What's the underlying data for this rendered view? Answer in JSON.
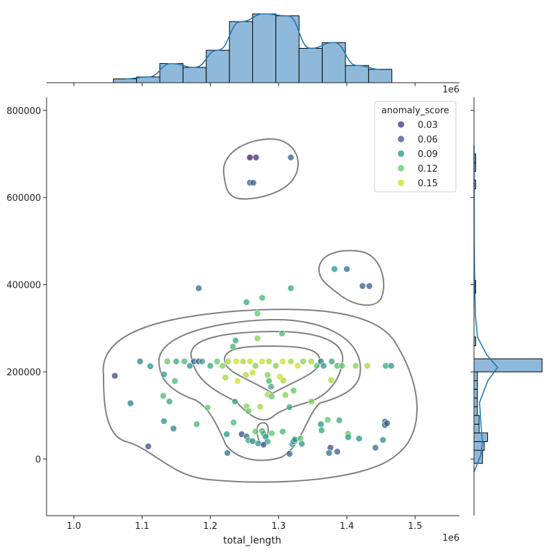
{
  "chart_data": {
    "type": "scatter",
    "xlabel": "total_length",
    "ylabel": "",
    "x_offset_label": "1e6",
    "xlim": [
      0.96,
      1.565
    ],
    "ylim": [
      -130000,
      830000
    ],
    "x_ticks": [
      1.0,
      1.1,
      1.2,
      1.3,
      1.4,
      1.5
    ],
    "x_tick_labels": [
      "1.0",
      "1.1",
      "1.2",
      "1.3",
      "1.4",
      "1.5"
    ],
    "y_ticks": [
      0,
      200000,
      400000,
      600000,
      800000
    ],
    "y_tick_labels": [
      "0",
      "200000",
      "400000",
      "600000",
      "800000"
    ],
    "legend": {
      "title": "anomaly_score",
      "placement": "top-right",
      "entries": [
        {
          "label": "0.03",
          "color": "#472d7b"
        },
        {
          "label": "0.06",
          "color": "#3b528b"
        },
        {
          "label": "0.09",
          "color": "#21918c"
        },
        {
          "label": "0.12",
          "color": "#5ec962"
        },
        {
          "label": "0.15",
          "color": "#bddf26"
        }
      ]
    },
    "colors": {
      "hist_fill": "#8fb9da",
      "hist_edge": "#000000",
      "kde_marginal": "#1f77b4",
      "contour": "#7f7f7f"
    },
    "points": [
      [
        1.258,
        692000,
        0.03
      ],
      [
        1.267,
        692000,
        0.04
      ],
      [
        1.318,
        692000,
        0.06
      ],
      [
        1.258,
        634000,
        0.06
      ],
      [
        1.263,
        634000,
        0.06
      ],
      [
        1.382,
        436000,
        0.09
      ],
      [
        1.4,
        436000,
        0.07
      ],
      [
        1.423,
        397000,
        0.06
      ],
      [
        1.433,
        397000,
        0.06
      ],
      [
        1.183,
        392000,
        0.07
      ],
      [
        1.318,
        392000,
        0.1
      ],
      [
        1.253,
        360000,
        0.1
      ],
      [
        1.276,
        370000,
        0.11
      ],
      [
        1.269,
        334000,
        0.12
      ],
      [
        1.305,
        288000,
        0.11
      ],
      [
        1.237,
        272000,
        0.1
      ],
      [
        1.269,
        277000,
        0.13
      ],
      [
        1.233,
        258000,
        0.11
      ],
      [
        1.06,
        191000,
        0.05
      ],
      [
        1.097,
        224000,
        0.08
      ],
      [
        1.112,
        213000,
        0.09
      ],
      [
        1.137,
        224000,
        0.12
      ],
      [
        1.15,
        224000,
        0.1
      ],
      [
        1.162,
        224000,
        0.11
      ],
      [
        1.17,
        214000,
        0.09
      ],
      [
        1.176,
        224000,
        0.07
      ],
      [
        1.183,
        224000,
        0.05
      ],
      [
        1.188,
        224000,
        0.1
      ],
      [
        1.2,
        214000,
        0.1
      ],
      [
        1.21,
        224000,
        0.12
      ],
      [
        1.218,
        214000,
        0.13
      ],
      [
        1.226,
        224000,
        0.14
      ],
      [
        1.238,
        224000,
        0.15
      ],
      [
        1.248,
        224000,
        0.14
      ],
      [
        1.258,
        224000,
        0.15
      ],
      [
        1.266,
        214000,
        0.13
      ],
      [
        1.276,
        224000,
        0.15
      ],
      [
        1.286,
        224000,
        0.14
      ],
      [
        1.296,
        214000,
        0.13
      ],
      [
        1.306,
        224000,
        0.15
      ],
      [
        1.318,
        224000,
        0.14
      ],
      [
        1.328,
        214000,
        0.15
      ],
      [
        1.336,
        224000,
        0.13
      ],
      [
        1.348,
        224000,
        0.14
      ],
      [
        1.356,
        214000,
        0.12
      ],
      [
        1.362,
        224000,
        0.08
      ],
      [
        1.366,
        214000,
        0.09
      ],
      [
        1.378,
        224000,
        0.1
      ],
      [
        1.386,
        214000,
        0.11
      ],
      [
        1.393,
        214000,
        0.12
      ],
      [
        1.413,
        214000,
        0.13
      ],
      [
        1.43,
        214000,
        0.14
      ],
      [
        1.457,
        214000,
        0.1
      ],
      [
        1.465,
        214000,
        0.09
      ],
      [
        1.132,
        194000,
        0.09
      ],
      [
        1.148,
        179000,
        0.11
      ],
      [
        1.222,
        187000,
        0.14
      ],
      [
        1.24,
        179000,
        0.15
      ],
      [
        1.252,
        193000,
        0.14
      ],
      [
        1.262,
        198000,
        0.15
      ],
      [
        1.284,
        193000,
        0.13
      ],
      [
        1.302,
        189000,
        0.15
      ],
      [
        1.307,
        180000,
        0.14
      ],
      [
        1.286,
        179000,
        0.11
      ],
      [
        1.289,
        166000,
        0.1
      ],
      [
        1.322,
        157000,
        0.12
      ],
      [
        1.284,
        148000,
        0.14
      ],
      [
        1.29,
        144000,
        0.12
      ],
      [
        1.31,
        147000,
        0.13
      ],
      [
        1.377,
        181000,
        0.14
      ],
      [
        1.131,
        145000,
        0.11
      ],
      [
        1.14,
        132000,
        0.1
      ],
      [
        1.083,
        128000,
        0.08
      ],
      [
        1.236,
        132000,
        0.1
      ],
      [
        1.253,
        121000,
        0.13
      ],
      [
        1.256,
        110000,
        0.12
      ],
      [
        1.273,
        120000,
        0.14
      ],
      [
        1.316,
        119000,
        0.1
      ],
      [
        1.348,
        132000,
        0.13
      ],
      [
        1.196,
        118000,
        0.12
      ],
      [
        1.132,
        87000,
        0.09
      ],
      [
        1.18,
        80000,
        0.11
      ],
      [
        1.146,
        70000,
        0.08
      ],
      [
        1.234,
        84000,
        0.11
      ],
      [
        1.362,
        80000,
        0.09
      ],
      [
        1.372,
        90000,
        0.12
      ],
      [
        1.389,
        89000,
        0.1
      ],
      [
        1.363,
        66000,
        0.1
      ],
      [
        1.402,
        58000,
        0.12
      ],
      [
        1.402,
        50000,
        0.09
      ],
      [
        1.418,
        47000,
        0.09
      ],
      [
        1.456,
        86000,
        0.07
      ],
      [
        1.456,
        78000,
        0.06
      ],
      [
        1.459,
        82000,
        0.06
      ],
      [
        1.453,
        44000,
        0.09
      ],
      [
        1.442,
        26000,
        0.07
      ],
      [
        1.224,
        57000,
        0.09
      ],
      [
        1.246,
        57000,
        0.05
      ],
      [
        1.253,
        52000,
        0.07
      ],
      [
        1.256,
        43000,
        0.1
      ],
      [
        1.262,
        41000,
        0.08
      ],
      [
        1.266,
        63000,
        0.12
      ],
      [
        1.27,
        36000,
        0.09
      ],
      [
        1.276,
        64000,
        0.1
      ],
      [
        1.278,
        58000,
        0.11
      ],
      [
        1.281,
        51000,
        0.09
      ],
      [
        1.284,
        40000,
        0.1
      ],
      [
        1.278,
        33000,
        0.06
      ],
      [
        1.29,
        59000,
        0.12
      ],
      [
        1.306,
        63000,
        0.11
      ],
      [
        1.32,
        34000,
        0.1
      ],
      [
        1.322,
        41000,
        0.08
      ],
      [
        1.324,
        45000,
        0.09
      ],
      [
        1.332,
        47000,
        0.12
      ],
      [
        1.334,
        35000,
        0.09
      ],
      [
        1.376,
        26000,
        0.05
      ],
      [
        1.386,
        17000,
        0.06
      ],
      [
        1.374,
        14000,
        0.07
      ],
      [
        1.316,
        12000,
        0.06
      ],
      [
        1.225,
        14000,
        0.07
      ],
      [
        1.109,
        29000,
        0.05
      ]
    ],
    "top_hist": {
      "bin_edges": [
        1.058,
        1.092,
        1.126,
        1.16,
        1.194,
        1.228,
        1.262,
        1.296,
        1.33,
        1.364,
        1.398,
        1.432,
        1.466
      ],
      "counts": [
        2,
        3,
        10,
        8,
        17,
        32,
        36,
        35,
        18,
        21,
        9,
        7
      ]
    },
    "right_hist": {
      "bin_edges": [
        -10000,
        20000,
        40000,
        60000,
        80000,
        100000,
        120000,
        140000,
        160000,
        180000,
        200000,
        230000,
        260000,
        280000,
        380000,
        410000,
        620000,
        640000,
        660000,
        680000,
        700000
      ],
      "counts": [
        5,
        6,
        8,
        3,
        3,
        2,
        2,
        2,
        2,
        2,
        40,
        0,
        1,
        0,
        1,
        0,
        1,
        0,
        1,
        1
      ]
    }
  }
}
